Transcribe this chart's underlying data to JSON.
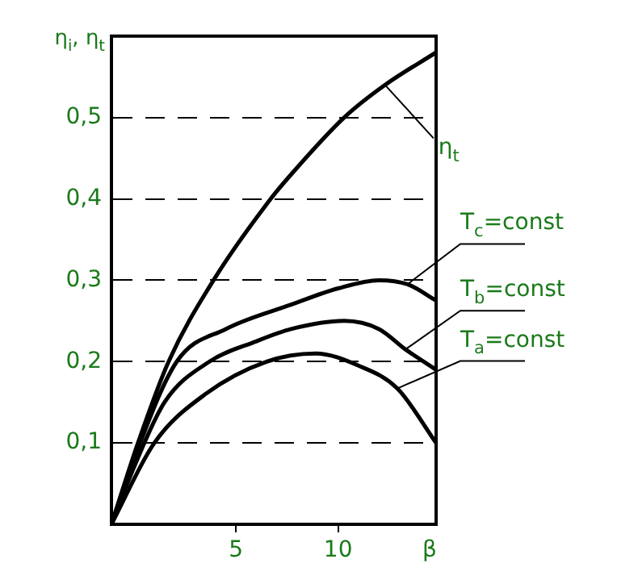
{
  "chart_data": {
    "type": "line",
    "xlabel": "β",
    "ylabel": "η$_{i}$, η$_{t}$",
    "xlim": [
      -1.1,
      14.8
    ],
    "xticks": [
      5,
      10
    ],
    "ylim": [
      0,
      0.6
    ],
    "yticks": [
      {
        "value": 0.1,
        "label": "0,1"
      },
      {
        "value": 0.2,
        "label": "0,2"
      },
      {
        "value": 0.3,
        "label": "0,3"
      },
      {
        "value": 0.4,
        "label": "0,4"
      },
      {
        "value": 0.5,
        "label": "0,5"
      }
    ],
    "grid": "y",
    "legend": false,
    "marker": "none",
    "series": [
      {
        "name": "η$_{t}$",
        "color": "#000000",
        "x": [
          -1.1,
          0.2,
          1.7,
          3.9,
          6.7,
          7.7,
          10.3,
          12.3,
          14.8
        ],
        "values": [
          0,
          0.1,
          0.2,
          0.3,
          0.4,
          0.43,
          0.5,
          0.54,
          0.58
        ]
      },
      {
        "name": "T$_{c}$=const",
        "color": "#000000",
        "x": [
          -1.1,
          0,
          2.1,
          4.5,
          7.7,
          10,
          12,
          13.4,
          14.8
        ],
        "values": [
          0,
          0.08,
          0.2,
          0.24,
          0.27,
          0.29,
          0.3,
          0.295,
          0.275
        ]
      },
      {
        "name": "T$_{b}$=const",
        "color": "#000000",
        "x": [
          -1.1,
          0,
          1.5,
          3.7,
          6,
          7.7,
          10.3,
          12,
          13.3,
          14.8
        ],
        "values": [
          0,
          0.07,
          0.15,
          0.2,
          0.225,
          0.24,
          0.25,
          0.24,
          0.215,
          0.19
        ]
      },
      {
        "name": "T$_{a}$=const",
        "color": "#000000",
        "x": [
          -1.1,
          1,
          3.5,
          6.5,
          8.9,
          11,
          12.9,
          14.8
        ],
        "values": [
          0,
          0.1,
          0.16,
          0.2,
          0.21,
          0.195,
          0.167,
          0.1
        ]
      }
    ]
  }
}
